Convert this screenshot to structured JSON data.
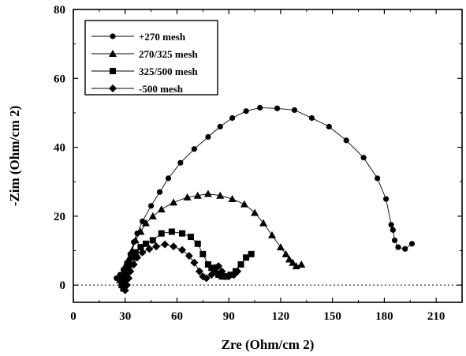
{
  "chart_data": {
    "type": "scatter",
    "xlabel": "Zre (Ohm/cm 2)",
    "ylabel": "-Zim (Ohm/cm 2)",
    "xlim": [
      0,
      225
    ],
    "ylim": [
      -5,
      80
    ],
    "xticks": [
      "0",
      "30",
      "60",
      "90",
      "120",
      "150",
      "180",
      "210"
    ],
    "yticks": [
      "0",
      "20",
      "40",
      "60",
      "80"
    ],
    "grid": false,
    "legend_position": "top-left",
    "reference_line": {
      "y": 0,
      "style": "dotted"
    },
    "series": [
      {
        "name": "+270 mesh",
        "marker": "circle",
        "points": [
          [
            25,
            2
          ],
          [
            27,
            3
          ],
          [
            29,
            4.5
          ],
          [
            31,
            6.5
          ],
          [
            33,
            9
          ],
          [
            35,
            12.5
          ],
          [
            37,
            15
          ],
          [
            40,
            18.5
          ],
          [
            45,
            23
          ],
          [
            50,
            27
          ],
          [
            55,
            31
          ],
          [
            62,
            35.5
          ],
          [
            70,
            39.5
          ],
          [
            78,
            43
          ],
          [
            85,
            46
          ],
          [
            92,
            48.5
          ],
          [
            100,
            50.5
          ],
          [
            108,
            51.5
          ],
          [
            118,
            51.3
          ],
          [
            128,
            50.8
          ],
          [
            138,
            48.5
          ],
          [
            148,
            46
          ],
          [
            158,
            42
          ],
          [
            168,
            37
          ],
          [
            176,
            31
          ],
          [
            181,
            25
          ],
          [
            184,
            17.5
          ],
          [
            185,
            16
          ],
          [
            186,
            13
          ],
          [
            188,
            11
          ],
          [
            192,
            10.5
          ],
          [
            196,
            12
          ]
        ]
      },
      {
        "name": "270/325 mesh",
        "marker": "triangle",
        "points": [
          [
            27,
            1.5
          ],
          [
            28,
            2.5
          ],
          [
            29,
            4
          ],
          [
            30,
            5.5
          ],
          [
            31,
            6
          ],
          [
            32,
            7.5
          ],
          [
            34,
            10
          ],
          [
            36,
            13
          ],
          [
            39,
            15.5
          ],
          [
            42,
            18
          ],
          [
            46,
            20
          ],
          [
            51,
            22
          ],
          [
            58,
            24
          ],
          [
            66,
            25.5
          ],
          [
            72,
            26
          ],
          [
            78,
            26.5
          ],
          [
            85,
            26
          ],
          [
            92,
            25
          ],
          [
            99,
            23.5
          ],
          [
            105,
            21
          ],
          [
            110,
            18
          ],
          [
            115,
            14.5
          ],
          [
            120,
            11
          ],
          [
            123,
            9
          ],
          [
            125,
            7.5
          ],
          [
            127,
            6.5
          ],
          [
            129,
            5.5
          ],
          [
            132,
            6
          ]
        ]
      },
      {
        "name": "325/500 mesh",
        "marker": "square",
        "points": [
          [
            28,
            0
          ],
          [
            29,
            -1
          ],
          [
            29.5,
            1
          ],
          [
            30,
            2
          ],
          [
            30.5,
            3
          ],
          [
            31,
            4
          ],
          [
            31.5,
            5
          ],
          [
            32,
            6
          ],
          [
            34,
            8
          ],
          [
            36,
            9.5
          ],
          [
            39,
            11
          ],
          [
            42,
            12
          ],
          [
            46,
            13
          ],
          [
            51,
            15
          ],
          [
            57,
            15.5
          ],
          [
            63,
            15
          ],
          [
            68,
            14
          ],
          [
            72,
            12
          ],
          [
            75,
            9
          ],
          [
            78,
            6
          ],
          [
            80,
            5
          ],
          [
            82,
            4
          ],
          [
            84,
            3
          ],
          [
            86,
            2.5
          ],
          [
            88,
            2.5
          ],
          [
            91,
            3
          ],
          [
            94,
            4
          ],
          [
            97,
            6
          ],
          [
            100,
            8
          ],
          [
            103,
            9
          ]
        ]
      },
      {
        "name": "-500 mesh",
        "marker": "diamond",
        "points": [
          [
            29,
            1
          ],
          [
            30,
            -1.5
          ],
          [
            31,
            0
          ],
          [
            32,
            2
          ],
          [
            33,
            4
          ],
          [
            35,
            6
          ],
          [
            37,
            8
          ],
          [
            40,
            9.5
          ],
          [
            44,
            10.5
          ],
          [
            48,
            11.2
          ],
          [
            53,
            11.8
          ],
          [
            58,
            11.2
          ],
          [
            63,
            10.2
          ],
          [
            67,
            8.5
          ],
          [
            70,
            6.5
          ],
          [
            73,
            4
          ],
          [
            75,
            2.5
          ],
          [
            77,
            2
          ],
          [
            80,
            3
          ],
          [
            82,
            5
          ],
          [
            84,
            5.5
          ],
          [
            86,
            4
          ],
          [
            88,
            2.5
          ],
          [
            90,
            2.5
          ],
          [
            93,
            3
          ],
          [
            95,
            4
          ]
        ]
      }
    ]
  }
}
